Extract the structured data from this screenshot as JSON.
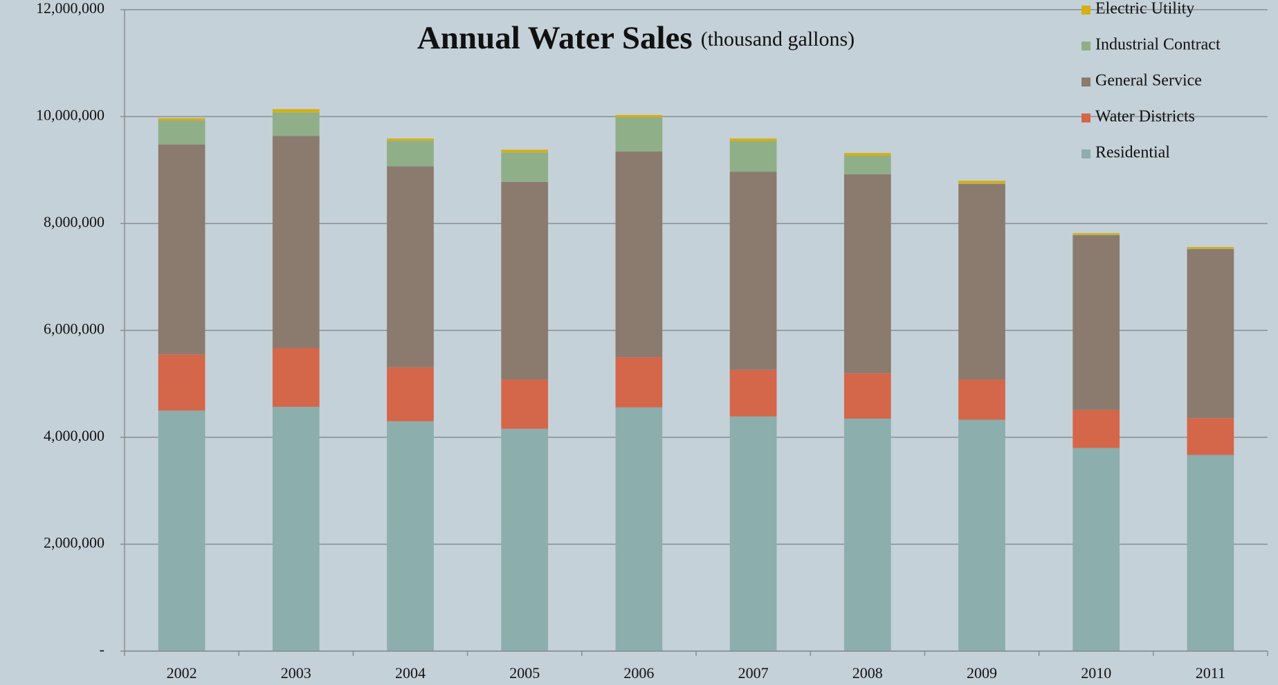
{
  "chart_data": {
    "type": "bar",
    "stacked": true,
    "title": "Annual Water Sales",
    "subtitle": "(thousand gallons)",
    "categories": [
      "2002",
      "2003",
      "2004",
      "2005",
      "2006",
      "2007",
      "2008",
      "2009",
      "2010",
      "2011"
    ],
    "series": [
      {
        "name": "Residential",
        "color": "#8caead",
        "values": [
          4500000,
          4570000,
          4300000,
          4160000,
          4560000,
          4390000,
          4350000,
          4330000,
          3800000,
          3670000
        ]
      },
      {
        "name": "Water Districts",
        "color": "#d4664a",
        "values": [
          1050000,
          1100000,
          1010000,
          920000,
          940000,
          870000,
          850000,
          750000,
          710000,
          690000
        ]
      },
      {
        "name": "General Service",
        "color": "#8b7b6e",
        "values": [
          3930000,
          3970000,
          3760000,
          3700000,
          3850000,
          3710000,
          3720000,
          3660000,
          3270000,
          3160000
        ]
      },
      {
        "name": "Industrial Contract",
        "color": "#8faf88",
        "values": [
          450000,
          440000,
          480000,
          550000,
          640000,
          570000,
          350000,
          10000,
          10000,
          10000
        ]
      },
      {
        "name": "Electric Utility",
        "color": "#d4b012",
        "values": [
          40000,
          60000,
          40000,
          50000,
          40000,
          50000,
          50000,
          50000,
          30000,
          30000
        ]
      }
    ],
    "ylim": [
      0,
      12000000
    ],
    "yticks": [
      {
        "value": 0,
        "label": "-"
      },
      {
        "value": 2000000,
        "label": "2,000,000"
      },
      {
        "value": 4000000,
        "label": "4,000,000"
      },
      {
        "value": 6000000,
        "label": "6,000,000"
      },
      {
        "value": 8000000,
        "label": "8,000,000"
      },
      {
        "value": 10000000,
        "label": "10,000,000"
      },
      {
        "value": 12000000,
        "label": "12,000,000"
      }
    ],
    "grid": true,
    "legend": "top-right"
  }
}
